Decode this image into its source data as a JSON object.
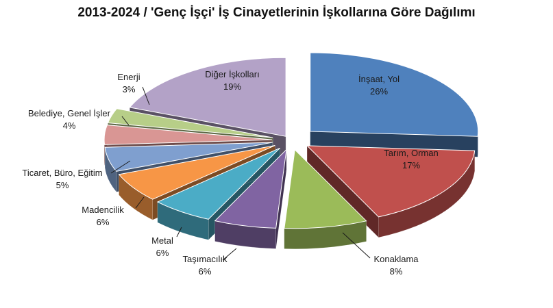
{
  "chart_data": {
    "type": "pie",
    "title": "2013-2024 / 'Genç İşçi' İş Cinayetlerinin İşkollarına Göre Dağılımı",
    "slices": [
      {
        "label": "İnşaat, Yol",
        "value": 26,
        "value_label": "26%",
        "color": "#4F81BD",
        "label_inside": true
      },
      {
        "label": "Tarım, Orman",
        "value": 17,
        "value_label": "17%",
        "color": "#C0504D",
        "label_inside": true
      },
      {
        "label": "Konaklama",
        "value": 8,
        "value_label": "8%",
        "color": "#9BBB59",
        "label_inside": false
      },
      {
        "label": "Taşımacılık",
        "value": 6,
        "value_label": "6%",
        "color": "#8064A2",
        "label_inside": false
      },
      {
        "label": "Metal",
        "value": 6,
        "value_label": "6%",
        "color": "#4BACC6",
        "label_inside": false
      },
      {
        "label": "Madencilik",
        "value": 6,
        "value_label": "6%",
        "color": "#F79646",
        "label_inside": false
      },
      {
        "label": "Ticaret, Büro, Eğitim",
        "value": 5,
        "value_label": "5%",
        "color": "#7F9FCF",
        "label_inside": false
      },
      {
        "label": "Belediye, Genel İşler",
        "value": 4,
        "value_label": "4%",
        "color": "#D99694",
        "label_inside": false
      },
      {
        "label": "Enerji",
        "value": 3,
        "value_label": "3%",
        "color": "#B7CE88",
        "label_inside": false
      },
      {
        "label": "Diğer İşkolları",
        "value": 19,
        "value_label": "19%",
        "color": "#B3A2C7",
        "label_inside": true
      }
    ],
    "style": "3d-exploded",
    "legend": "none"
  }
}
